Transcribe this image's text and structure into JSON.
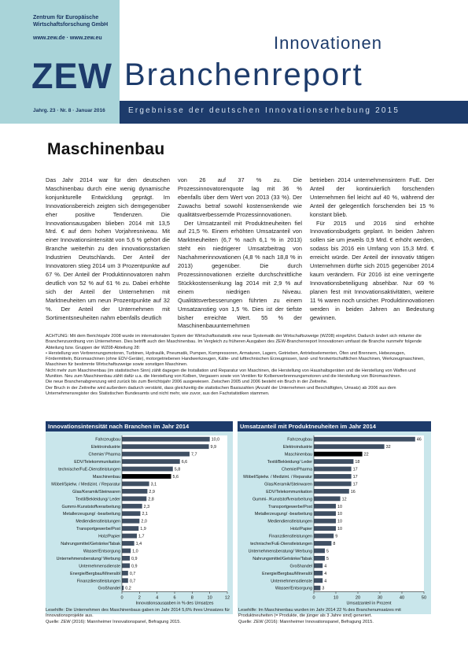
{
  "header": {
    "org_line1": "Zentrum für Europäische",
    "org_line2": "Wirtschaftsforschung GmbH",
    "web": "www.zew.de · www.zew.eu",
    "logo": "ZEW",
    "title_small": "Innovationen",
    "title_big": "Branchenreport",
    "issue": "Jahrg. 23 · Nr. 8 · Januar 2016",
    "subtitle": "Ergebnisse der deutschen Innovationserhebung 2015"
  },
  "article": {
    "title": "Maschinenbau",
    "col1": "Das Jahr 2014 war für den deutschen Maschinenbau durch eine wenig dynamische konjunkturelle Entwicklung geprägt. Im Innovationsbereich zeigten sich demgegenüber eher positive Tendenzen. Die Innovationsausgaben blieben 2014 mit 13,5 Mrd. € auf dem hohen Vorjahresniveau. Mit einer Innovationsintensität von 5,6 % gehört die Branche weiterhin zu den innovationsstarken Industrien Deutschlands. Der Anteil der Innovatoren stieg 2014 um 3 Prozentpunkte auf 67 %. Der Anteil der Produktinnovatoren nahm deutlich von 52 % auf 61 % zu. Dabei erhöhte sich der Anteil der Unternehmen mit Marktneuheiten um neun Prozentpunkte auf 32 %. Der Anteil der Unternehmen mit Sortimentsneuheiten nahm ebenfalls deutlich",
    "col2": "von 26 auf 37 % zu. Die Prozessinnovatorenquote lag mit 36 % ebenfalls über dem Wert von 2013 (33 %). Der Zuwachs betraf sowohl kostensenkende wie qualitätsverbessernde Prozessinnovationen.\nDer Umsatzanteil mit Produktneuheiten fiel auf 21,5 %. Einem erhöhten Umsatzanteil von Marktneuheiten (6,7 % nach 6,1 % in 2013) steht ein niedrigerer Umsatzbeitrag von Nachahmerinnovationen (4,8 % nach 18,8 % in 2013) gegenüber. Die durch Prozessinnovationen erzielte durchschnittliche Stückkostensenkung lag 2014 mit 2,9 % auf einem niedrigen Niveau. Qualitätsverbesserungen führten zu einem Umsatzanstieg von 1,5 %. Dies ist der tiefste bisher erreichte Wert. 55 % der Maschinenbauunternehmen",
    "col3": "betrieben 2014 unternehmensintern FuE. Der Anteil der kontinuierlich forschenden Unternehmen fiel leicht auf 40 %, während der Anteil der gelegentlich forschenden bei 15 % konstant blieb.\nFür 2015 und 2016 sind erhöhte Innovationsbudgets geplant. In beiden Jahren sollen sie um jeweils 0,9 Mrd. € erhöht werden, sodass bis 2016 ein Umfang von 15,3 Mrd. € erreicht würde. Der Anteil der innovativ tätigen Unternehmen dürfte sich 2015 gegenüber 2014 kaum verändern. Für 2016 ist eine verringerte Innovationsbeteiligung absehbar. Nur 69 % planen fest mit Innovationsaktivitäten, weitere 11 % waren noch unsicher. Produktinnovationen werden in beiden Jahren an Bedeutung gewinnen."
  },
  "note": {
    "p1": "ACHTUNG: Mit dem Berichtsjahr 2008 wurde im internationalen System der Wirtschaftsstatistik eine neue Systematik der Wirtschaftszweige (WZ08) eingeführt. Dadurch ändert sich mitunter die Branchenzuordnung von Unternehmen. Dies betrifft auch den Maschinenbau. Im Vergleich zu früheren Ausgaben des ZEW-Branchenreport Innovationen umfasst die Branche nunmehr folgende Abteilung bzw. Gruppen der WZ08-Abteilung 28:",
    "p2": "• Herstellung von Verbrennungsmotoren, Turbinen, Hydraulik, Pneumatik, Pumpen, Kompressoren, Armaturen, Lagern, Getrieben, Antriebselementen, Öfen und Brennern, Hebezeugen, Fördermitteln, Büromaschinen (ohne EDV-Geräte), motorgetriebenen Handwerkzeugen, Kälte- und lufttechnischen Erzeugnissen, land- und forstwirtschaftlichen Maschinen, Werkzeugmaschinen, Maschinen für bestimmte Wirtschaftszweige sowie sonstigen Maschinen.",
    "p3": "Nicht mehr zum Maschinenbau (im statistischen Sinn) zählt dagegen die Installation und Reparatur von Maschinen, die Herstellung von Haushaltsgeräten und die Herstellung von Waffen und Munition. Neu zum Maschinenbau zählt dafür u.a. die Herstellung von Kolben, Vergasern sowie von Ventilen für Kolbenverbrennungsmotoren und die Herstellung von Büromaschinen.",
    "p4": "Die neue Branchenabgrenzung wird zurück bis zum Berichtsjahr 2006 ausgewiesen. Zwischen 2005 und 2006 besteht ein Bruch in der Zeitreihe.",
    "p5": "Der Bruch in der Zeitreihe wird außerdem dadurch verstärkt, dass gleichzeitig die statistischen Basiszahlen (Anzahl der Unternehmen und Beschäftigten, Umsatz) ab 2006 aus dem Unternehmensregister des Statistischen Bundesamts und nicht mehr, wie zuvor, aus den Fachstatistiken stammen."
  },
  "chart_data": [
    {
      "type": "bar",
      "orientation": "horizontal",
      "title": "Innovationsintensität nach Branchen im Jahr 2014",
      "xlabel": "Innovationsausgaben in % des Umsatzes",
      "xlim": [
        0,
        12
      ],
      "xticks": [
        "0",
        "2",
        "4",
        "6",
        "8",
        "10",
        "12"
      ],
      "highlight": "Maschinenbau",
      "bar_color": "#3f4f63",
      "highlight_color": "#000000",
      "categories": [
        "Fahrzeugbau",
        "Elektroindustrie",
        "Chemie/ Pharma",
        "EDV/Telekommunikation",
        "technische/FuE-Dienstleistungen",
        "Maschinenbau",
        "Möbel/Spielw. / Medizint. / Reparatur",
        "Glas/Keramik/Steinwaren",
        "Textil/Bekleidung/ Leder",
        "Gummi-/Kunststoffverarbeitung",
        "Metallerzeugung/ -bearbeitung",
        "Mediendienstleistungen",
        "Transportgewerbe/Post",
        "Holz/Papier",
        "Nahrungsmittel/Getränke/Tabak",
        "Wasser/Entsorgung",
        "Unternehmensberatung/ Werbung",
        "Unternehmensdienste",
        "Energie/Bergbau/Mineralöl",
        "Finanzdienstleistungen",
        "Großhandel"
      ],
      "values": [
        10.0,
        9.9,
        7.7,
        6.6,
        5.8,
        5.6,
        3.1,
        2.9,
        2.8,
        2.3,
        2.1,
        2.0,
        1.9,
        1.7,
        1.4,
        1.0,
        0.9,
        0.9,
        0.7,
        0.7,
        0.2
      ],
      "labels": [
        "10,0",
        "9,9",
        "7,7",
        "6,6",
        "5,8",
        "5,6",
        "3,1",
        "2,9",
        "2,8",
        "2,3",
        "2,1",
        "2,0",
        "1,9",
        "1,7",
        "1,4",
        "1,0",
        "0,9",
        "0,9",
        "0,7",
        "0,7",
        "0,2"
      ]
    },
    {
      "type": "bar",
      "orientation": "horizontal",
      "title": "Umsatzanteil mit Produktneuheiten im Jahr 2014",
      "xlabel": "Umsatzanteil in Prozent",
      "xlim": [
        0,
        50
      ],
      "xticks": [
        "0",
        "10",
        "20",
        "30",
        "40",
        "50"
      ],
      "highlight": "Maschinenbau",
      "bar_color": "#3f4f63",
      "highlight_color": "#000000",
      "categories": [
        "Fahrzeugbau",
        "Elektroindustrie",
        "Maschinenbau",
        "Textil/Bekleidung/ Leder",
        "Chemie/Pharma",
        "Möbel/Spielw. / Medizint. / Reparatur",
        "Glas/Keramik/Steinwaren",
        "EDV/Telekommunikation",
        "Gummi- /Kunststoffverarbeitung",
        "Transportgewerbe/Post",
        "Metallerzeugung/ -bearbeitung",
        "Mediendienstleistungen",
        "Holz/Papier",
        "Finanzdienstleistungen",
        "technische/FuE-Dienstleistungen",
        "Unternehmensberatung/ Werbung",
        "Nahrungsmittel/Getränke/Tabak",
        "Großhandel",
        "Energie/Bergbau/Mineralöl",
        "Unternehmensdienste",
        "Wasser/Entsorgung"
      ],
      "values": [
        46,
        32,
        22,
        18,
        17,
        17,
        17,
        16,
        12,
        10,
        10,
        10,
        10,
        9,
        8,
        5,
        5,
        4,
        4,
        4,
        3
      ],
      "labels": [
        "46",
        "32",
        "22",
        "18",
        "17",
        "17",
        "17",
        "16",
        "12",
        "10",
        "10",
        "10",
        "10",
        "9",
        "8",
        "5",
        "5",
        "4",
        "4",
        "4",
        "3"
      ]
    }
  ],
  "captions": {
    "c1": "Lesehilfe: Die Unternehmen des Maschinenbaus gaben im Jahr 2014 5,6% ihres Umsatzes für Innovationsprojekte aus.",
    "c1_src": "Quelle: ZEW (2016): Mannheimer Innovationspanel, Befragung 2015.",
    "c2": "Lesehilfe: Im Maschinenbau wurden im Jahr 2014 22 % des Branchenumsatzes mit Produktneuheiten (= Produkte, die jünger als 3 Jahre sind) generiert.",
    "c2_src": "Quelle: ZEW (2016): Mannheimer Innovationspanel, Befragung 2015."
  }
}
